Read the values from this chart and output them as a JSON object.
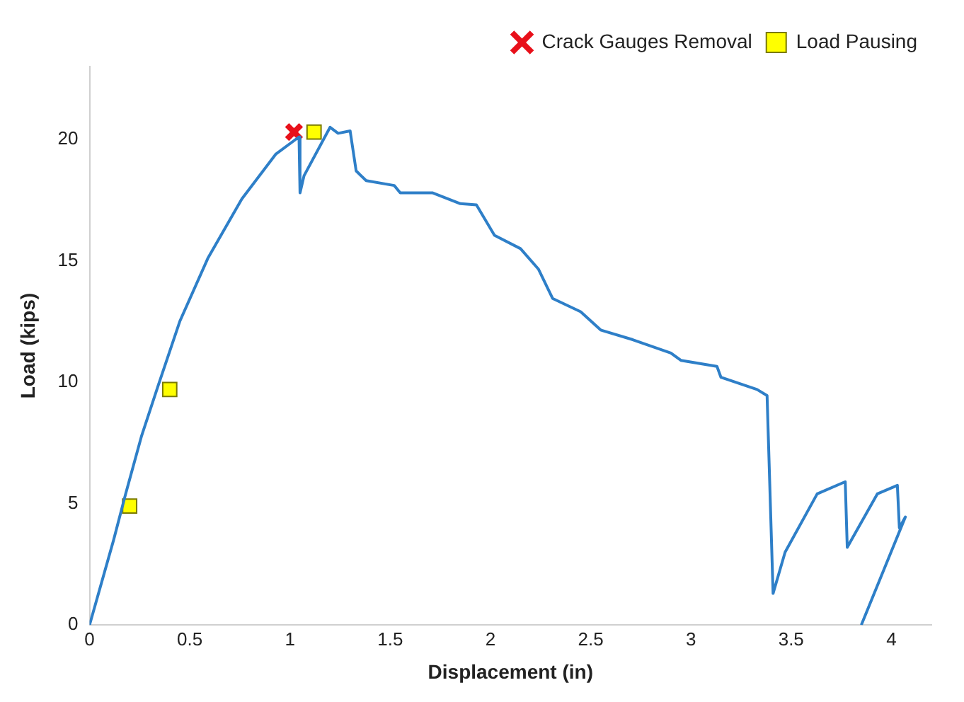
{
  "chart_data": {
    "type": "line",
    "xlabel": "Displacement (in)",
    "ylabel": "Load (kips)",
    "xlim": [
      0,
      4.2
    ],
    "xticks": [
      0,
      0.5,
      1,
      1.5,
      2,
      2.5,
      3,
      3.5,
      4
    ],
    "ylim": [
      0,
      23
    ],
    "yticks": [
      0,
      5,
      10,
      15,
      20
    ],
    "grid": false,
    "legend": "top right",
    "series": [
      {
        "type": "line",
        "color": "#2e7fc8",
        "marker": "none",
        "line_style": "solid",
        "x": [
          0,
          0.12,
          0.18,
          0.26,
          0.34,
          0.45,
          0.59,
          0.76,
          0.93,
          1.045,
          1.05,
          1.07,
          1.2,
          1.24,
          1.3,
          1.33,
          1.38,
          1.52,
          1.55,
          1.71,
          1.85,
          1.93,
          2.02,
          2.15,
          2.24,
          2.31,
          2.45,
          2.55,
          2.71,
          2.9,
          2.95,
          3.13,
          3.15,
          3.33,
          3.38,
          3.41,
          3.47,
          3.63,
          3.77,
          3.78,
          3.93,
          4.03,
          4.04,
          4.07,
          3.85
        ],
        "values": [
          0,
          3.5,
          5.4,
          7.8,
          9.8,
          12.5,
          15.1,
          17.55,
          19.4,
          20.1,
          17.8,
          18.5,
          20.5,
          20.25,
          20.35,
          18.7,
          18.3,
          18.1,
          17.8,
          17.8,
          17.35,
          17.3,
          16.05,
          15.5,
          14.65,
          13.45,
          12.9,
          12.15,
          11.75,
          11.2,
          10.9,
          10.65,
          10.2,
          9.7,
          9.45,
          1.3,
          3.0,
          5.4,
          5.9,
          3.2,
          5.4,
          5.75,
          4.0,
          4.45,
          0
        ]
      },
      {
        "type": "scatter",
        "name": "Crack Gauges Removal",
        "color": "#e8101a",
        "marker": "cross",
        "x": [
          1.02
        ],
        "values": [
          20.3
        ]
      },
      {
        "type": "scatter",
        "name": "Load Pausing",
        "color": "#ffff00",
        "marker": "square",
        "x": [
          0.2,
          0.4,
          1.12
        ],
        "values": [
          4.9,
          9.7,
          20.3
        ]
      }
    ]
  }
}
